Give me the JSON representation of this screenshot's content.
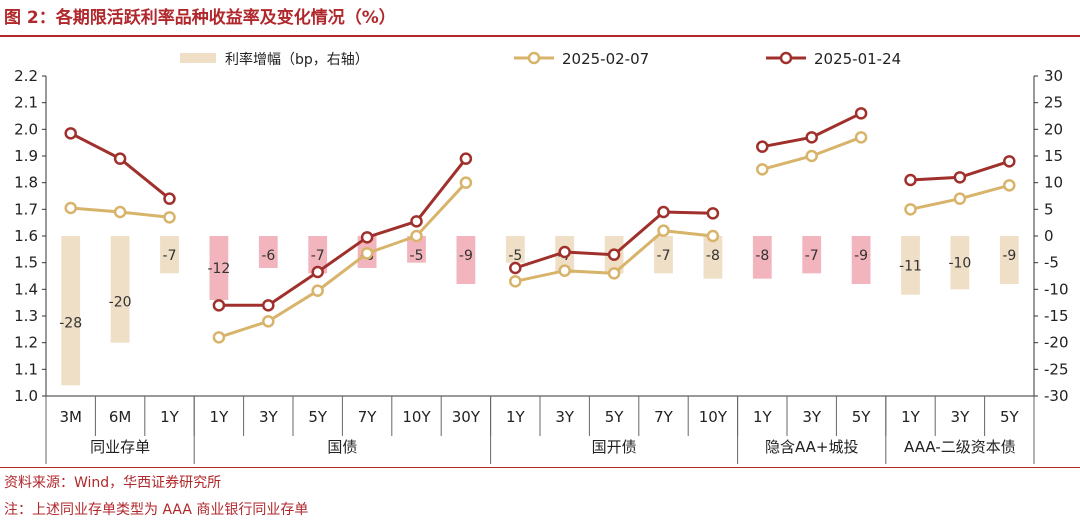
{
  "title": "图 2：各期限活跃利率品种收益率及变化情况（%）",
  "source": "资料来源：Wind，华西证券研究所",
  "note": "注：上述同业存单类型为 AAA 商业银行同业存单",
  "colors": {
    "accent": "#b0282c",
    "bar_pos": "#eedfc6",
    "bar_neg": "#f2b5bd",
    "line_new": "#d8b36a",
    "line_old": "#a0302c"
  },
  "chart_data": {
    "type": "bar",
    "categories": [
      "3M",
      "6M",
      "1Y",
      "1Y",
      "3Y",
      "5Y",
      "7Y",
      "10Y",
      "30Y",
      "1Y",
      "3Y",
      "5Y",
      "7Y",
      "10Y",
      "1Y",
      "3Y",
      "5Y",
      "1Y",
      "3Y",
      "5Y"
    ],
    "groups": [
      {
        "name": "同业存单",
        "categories": [
          "3M",
          "6M",
          "1Y"
        ]
      },
      {
        "name": "国债",
        "categories": [
          "1Y",
          "3Y",
          "5Y",
          "7Y",
          "10Y",
          "30Y"
        ]
      },
      {
        "name": "国开债",
        "categories": [
          "1Y",
          "3Y",
          "5Y",
          "7Y",
          "10Y"
        ]
      },
      {
        "name": "隐含AA+城投",
        "categories": [
          "1Y",
          "3Y",
          "5Y"
        ]
      },
      {
        "name": "AAA-二级资本债",
        "categories": [
          "1Y",
          "3Y",
          "5Y"
        ]
      }
    ],
    "bars": {
      "name": "利率增幅（bp，右轴）",
      "values": [
        -28,
        -20,
        -7,
        -12,
        -6,
        -7,
        -6,
        -5,
        -9,
        -5,
        -7,
        -7,
        -7,
        -8,
        -8,
        -7,
        -9,
        -11,
        -10,
        -9
      ],
      "highlight": [
        false,
        false,
        false,
        true,
        true,
        true,
        true,
        true,
        true,
        false,
        false,
        false,
        false,
        false,
        true,
        true,
        true,
        false,
        false,
        false
      ]
    },
    "series": [
      {
        "name": "2025-02-07",
        "values": [
          1.705,
          1.69,
          1.67,
          1.22,
          1.28,
          1.395,
          1.535,
          1.6,
          1.8,
          1.43,
          1.47,
          1.46,
          1.62,
          1.6,
          1.85,
          1.9,
          1.97,
          1.7,
          1.74,
          1.79
        ]
      },
      {
        "name": "2025-01-24",
        "values": [
          1.985,
          1.89,
          1.74,
          1.34,
          1.34,
          1.465,
          1.595,
          1.655,
          1.89,
          1.48,
          1.54,
          1.53,
          1.69,
          1.685,
          1.935,
          1.97,
          2.06,
          1.81,
          1.82,
          1.88
        ]
      }
    ],
    "ylim": [
      1.0,
      2.2
    ],
    "yticks": [
      "1.0",
      "1.1",
      "1.2",
      "1.3",
      "1.4",
      "1.5",
      "1.6",
      "1.7",
      "1.8",
      "1.9",
      "2.0",
      "2.1",
      "2.2"
    ],
    "y2lim": [
      -30,
      30
    ],
    "y2ticks": [
      "-30",
      "-25",
      "-20",
      "-15",
      "-10",
      "-5",
      "0",
      "5",
      "10",
      "15",
      "20",
      "25",
      "30"
    ],
    "legend_position": "top"
  }
}
